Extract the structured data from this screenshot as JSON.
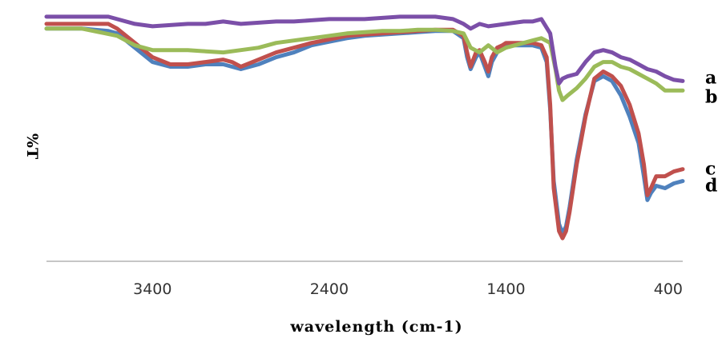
{
  "chart_data": {
    "type": "line",
    "xlabel": "wavelength (cm-1)",
    "ylabel": "%T",
    "x_reversed": true,
    "xlim": [
      4000,
      400
    ],
    "ylim": [
      0,
      100
    ],
    "x_ticks": [
      3400,
      2400,
      1400,
      400
    ],
    "x_tick_labels": [
      "3400",
      "2400",
      "1400",
      "400"
    ],
    "grid": false,
    "series": [
      {
        "name": "a",
        "color": "#7B4FA8",
        "x": [
          4000,
          3800,
          3650,
          3600,
          3500,
          3400,
          3300,
          3200,
          3100,
          3000,
          2900,
          2800,
          2700,
          2600,
          2500,
          2400,
          2300,
          2200,
          2100,
          2000,
          1900,
          1800,
          1700,
          1640,
          1600,
          1550,
          1500,
          1450,
          1400,
          1300,
          1250,
          1200,
          1150,
          1120,
          1100,
          1080,
          1050,
          1000,
          950,
          900,
          850,
          800,
          750,
          700,
          650,
          600,
          550,
          500,
          450,
          400
        ],
        "y": [
          97,
          97,
          97,
          96,
          94,
          93,
          93.5,
          94,
          94,
          95,
          94,
          94.5,
          95,
          95,
          95.5,
          96,
          96,
          96,
          96.5,
          97,
          97,
          97,
          96,
          94,
          92,
          94,
          93,
          93.5,
          94,
          95,
          95,
          96,
          90,
          76,
          69,
          71,
          72,
          73,
          78,
          82,
          83,
          82,
          80,
          79,
          77,
          75,
          74,
          72,
          70.5,
          70
        ]
      },
      {
        "name": "b",
        "color": "#9BBB59",
        "x": [
          4000,
          3800,
          3600,
          3500,
          3400,
          3300,
          3200,
          3100,
          3000,
          2900,
          2800,
          2700,
          2600,
          2500,
          2400,
          2300,
          2200,
          2100,
          2000,
          1900,
          1800,
          1700,
          1640,
          1600,
          1550,
          1500,
          1450,
          1400,
          1300,
          1250,
          1200,
          1150,
          1120,
          1100,
          1080,
          1050,
          1000,
          950,
          900,
          850,
          800,
          750,
          700,
          650,
          600,
          550,
          500,
          450,
          400
        ],
        "y": [
          92,
          92,
          89,
          85,
          83,
          83,
          83,
          82.5,
          82,
          83,
          84,
          86,
          87,
          88,
          89,
          90,
          90.5,
          91,
          91,
          91.5,
          91.5,
          91,
          90,
          84,
          82,
          85,
          82,
          84,
          86,
          87,
          88,
          86,
          75,
          66,
          62,
          64,
          67,
          71,
          76,
          78,
          78,
          76,
          75,
          73,
          71,
          69,
          66,
          66,
          66
        ]
      },
      {
        "name": "c",
        "color": "#C0504D",
        "x": [
          4000,
          3800,
          3650,
          3600,
          3500,
          3400,
          3300,
          3200,
          3100,
          3000,
          2950,
          2900,
          2800,
          2700,
          2600,
          2500,
          2400,
          2300,
          2200,
          2100,
          2000,
          1900,
          1800,
          1700,
          1640,
          1620,
          1600,
          1570,
          1550,
          1520,
          1500,
          1480,
          1450,
          1420,
          1400,
          1350,
          1300,
          1250,
          1200,
          1170,
          1150,
          1130,
          1100,
          1080,
          1060,
          1040,
          1000,
          950,
          900,
          850,
          800,
          750,
          700,
          650,
          620,
          600,
          580,
          550,
          500,
          450,
          400
        ],
        "y": [
          94,
          94,
          94,
          92,
          86,
          80,
          77,
          77,
          78,
          79,
          78,
          76,
          79,
          82,
          84,
          86,
          87.5,
          89,
          89.5,
          90,
          90.5,
          91,
          91.5,
          91.5,
          89,
          82,
          76,
          82,
          83,
          78,
          74,
          80,
          84,
          85,
          86,
          86,
          86,
          86,
          85,
          80,
          60,
          25,
          7,
          4,
          7,
          15,
          35,
          55,
          71,
          74,
          72,
          68,
          60,
          48,
          35,
          22,
          25,
          30,
          30,
          32,
          33
        ]
      },
      {
        "name": "d",
        "color": "#4F81BD",
        "x": [
          4000,
          3800,
          3650,
          3600,
          3500,
          3400,
          3300,
          3200,
          3100,
          3000,
          2950,
          2900,
          2800,
          2700,
          2600,
          2500,
          2400,
          2300,
          2200,
          2100,
          2000,
          1900,
          1800,
          1700,
          1640,
          1620,
          1600,
          1570,
          1550,
          1520,
          1500,
          1480,
          1450,
          1420,
          1400,
          1350,
          1300,
          1250,
          1200,
          1170,
          1150,
          1130,
          1100,
          1080,
          1060,
          1040,
          1000,
          950,
          900,
          850,
          800,
          750,
          700,
          650,
          620,
          600,
          580,
          550,
          500,
          450,
          400
        ],
        "y": [
          92,
          92,
          91,
          90,
          84,
          78,
          76,
          76,
          77,
          77,
          76,
          75,
          77,
          80,
          82,
          85,
          86.5,
          88,
          89,
          89.5,
          90,
          90.5,
          91,
          91,
          88,
          80,
          75,
          80,
          82,
          76,
          72,
          78,
          82,
          84,
          85,
          85,
          85,
          85,
          84,
          78,
          58,
          28,
          10,
          6,
          9,
          17,
          37,
          56,
          70,
          72,
          70,
          64,
          55,
          44,
          30,
          20,
          23,
          26,
          25,
          27,
          28
        ]
      }
    ]
  }
}
